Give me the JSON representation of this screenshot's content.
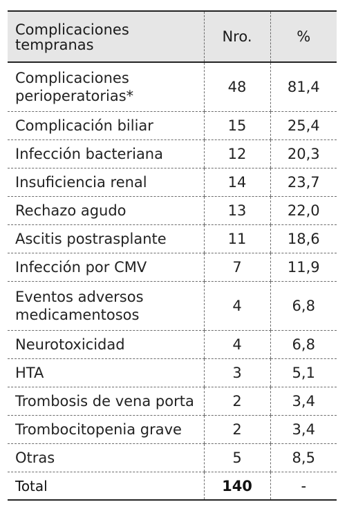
{
  "table": {
    "headers": {
      "name": "Complicaciones tempranas",
      "count": "Nro.",
      "percent": "%"
    },
    "rows": [
      {
        "name": "Complicaciones perioperatorias*",
        "count": "48",
        "percent": "81,4"
      },
      {
        "name": "Complicación biliar",
        "count": "15",
        "percent": "25,4"
      },
      {
        "name": "Infección bacteriana",
        "count": "12",
        "percent": "20,3"
      },
      {
        "name": "Insuficiencia renal",
        "count": "14",
        "percent": "23,7"
      },
      {
        "name": "Rechazo agudo",
        "count": "13",
        "percent": "22,0"
      },
      {
        "name": "Ascitis postrasplante",
        "count": "11",
        "percent": "18,6"
      },
      {
        "name": "Infección por CMV",
        "count": "7",
        "percent": "11,9"
      },
      {
        "name": "Eventos adversos medicamentosos",
        "count": "4",
        "percent": "6,8"
      },
      {
        "name": "Neurotoxicidad",
        "count": "4",
        "percent": "6,8"
      },
      {
        "name": "HTA",
        "count": "3",
        "percent": "5,1"
      },
      {
        "name": "Trombosis de vena porta",
        "count": "2",
        "percent": "3,4"
      },
      {
        "name": "Trombocitopenia grave",
        "count": "2",
        "percent": "3,4"
      },
      {
        "name": "Otras",
        "count": "5",
        "percent": "8,5"
      }
    ],
    "total": {
      "name": "Total",
      "count": "140",
      "percent": "-"
    }
  }
}
